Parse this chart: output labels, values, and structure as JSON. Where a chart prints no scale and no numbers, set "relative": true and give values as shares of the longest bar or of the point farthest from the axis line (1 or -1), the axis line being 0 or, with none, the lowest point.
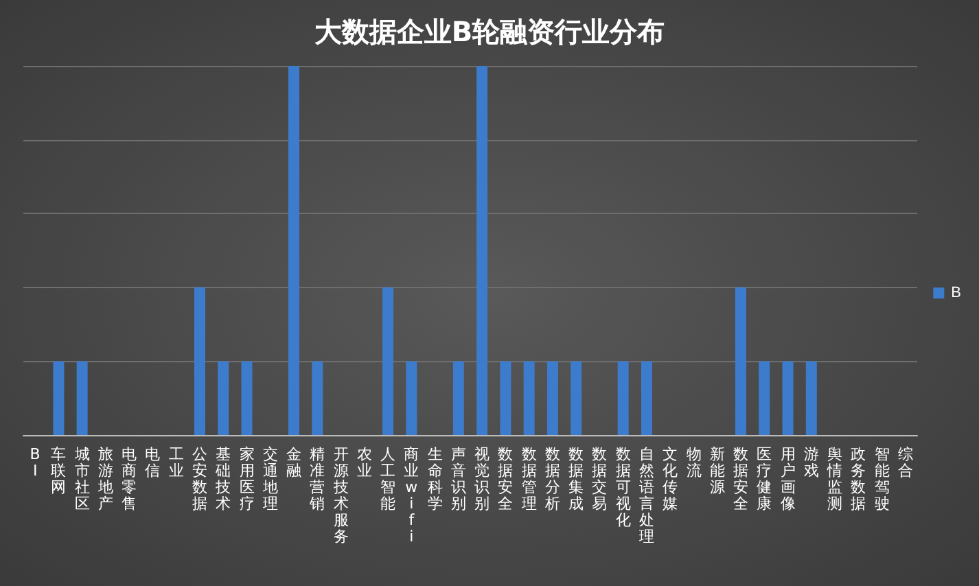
{
  "chart_data": {
    "type": "bar",
    "title": "大数据企业B轮融资行业分布",
    "categories": [
      "BI",
      "车联网",
      "城市社区",
      "旅游地产",
      "电商零售",
      "电信",
      "工业",
      "公安数据",
      "基础技术",
      "家用医疗",
      "交通地理",
      "金融",
      "精准营销",
      "开源技术服务",
      "农业",
      "人工智能",
      "商业wifi",
      "生命科学",
      "声音识别",
      "视觉识别",
      "数据安全",
      "数据管理",
      "数据分析",
      "数据集成",
      "数据交易",
      "数据可视化",
      "自然语言处理",
      "文化传媒",
      "物流",
      "新能源",
      "数据安全",
      "医疗健康",
      "用户画像",
      "游戏",
      "舆情监测",
      "政务数据",
      "智能驾驶",
      "综合"
    ],
    "series": [
      {
        "name": "B",
        "color": "#3d7ccc",
        "values": [
          0,
          0.2,
          0.2,
          0,
          0,
          0,
          0,
          0.4,
          0.2,
          0.2,
          0,
          1,
          0.2,
          0,
          0,
          0.4,
          0.2,
          0,
          0.2,
          1,
          0.2,
          0.2,
          0.2,
          0.2,
          0,
          0.2,
          0.2,
          0,
          0,
          0,
          0.4,
          0.2,
          0.2,
          0.2,
          0,
          0,
          0,
          0
        ]
      }
    ],
    "relative": true,
    "grid": "y",
    "legend": "right"
  }
}
